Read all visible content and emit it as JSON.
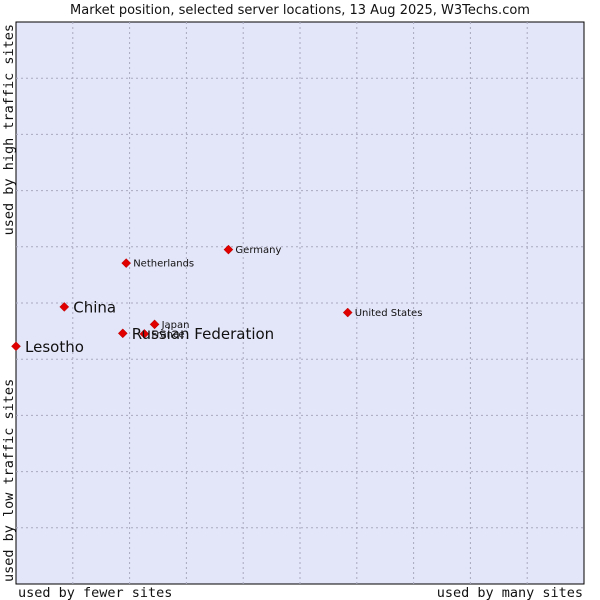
{
  "chart_data": {
    "type": "scatter",
    "title": "Market position, selected server locations, 13 Aug 2025, W3Techs.com",
    "x_axis": {
      "low_label": "used by fewer sites",
      "high_label": "used by many sites",
      "range": [
        0,
        100
      ]
    },
    "y_axis": {
      "low_label": "used by low traffic sites",
      "high_label": "used by high traffic sites",
      "range": [
        0,
        100
      ]
    },
    "grid": true,
    "colors": {
      "plot_background": "#e3e5f8",
      "point": "#e00000",
      "grid": "#a9a9bf"
    },
    "points": [
      {
        "name": "Germany",
        "x": 37.4,
        "y": 59.5,
        "emphasis": false
      },
      {
        "name": "Netherlands",
        "x": 19.4,
        "y": 57.1,
        "emphasis": false
      },
      {
        "name": "United States",
        "x": 58.4,
        "y": 48.3,
        "emphasis": false
      },
      {
        "name": "Japan",
        "x": 24.4,
        "y": 46.2,
        "emphasis": false
      },
      {
        "name": "France",
        "x": 22.6,
        "y": 44.5,
        "emphasis": false
      },
      {
        "name": "China",
        "x": 8.5,
        "y": 49.3,
        "emphasis": true
      },
      {
        "name": "Russian Federation",
        "x": 18.8,
        "y": 44.6,
        "emphasis": true
      },
      {
        "name": "Lesotho",
        "x": 0,
        "y": 42.3,
        "emphasis": true
      }
    ]
  }
}
